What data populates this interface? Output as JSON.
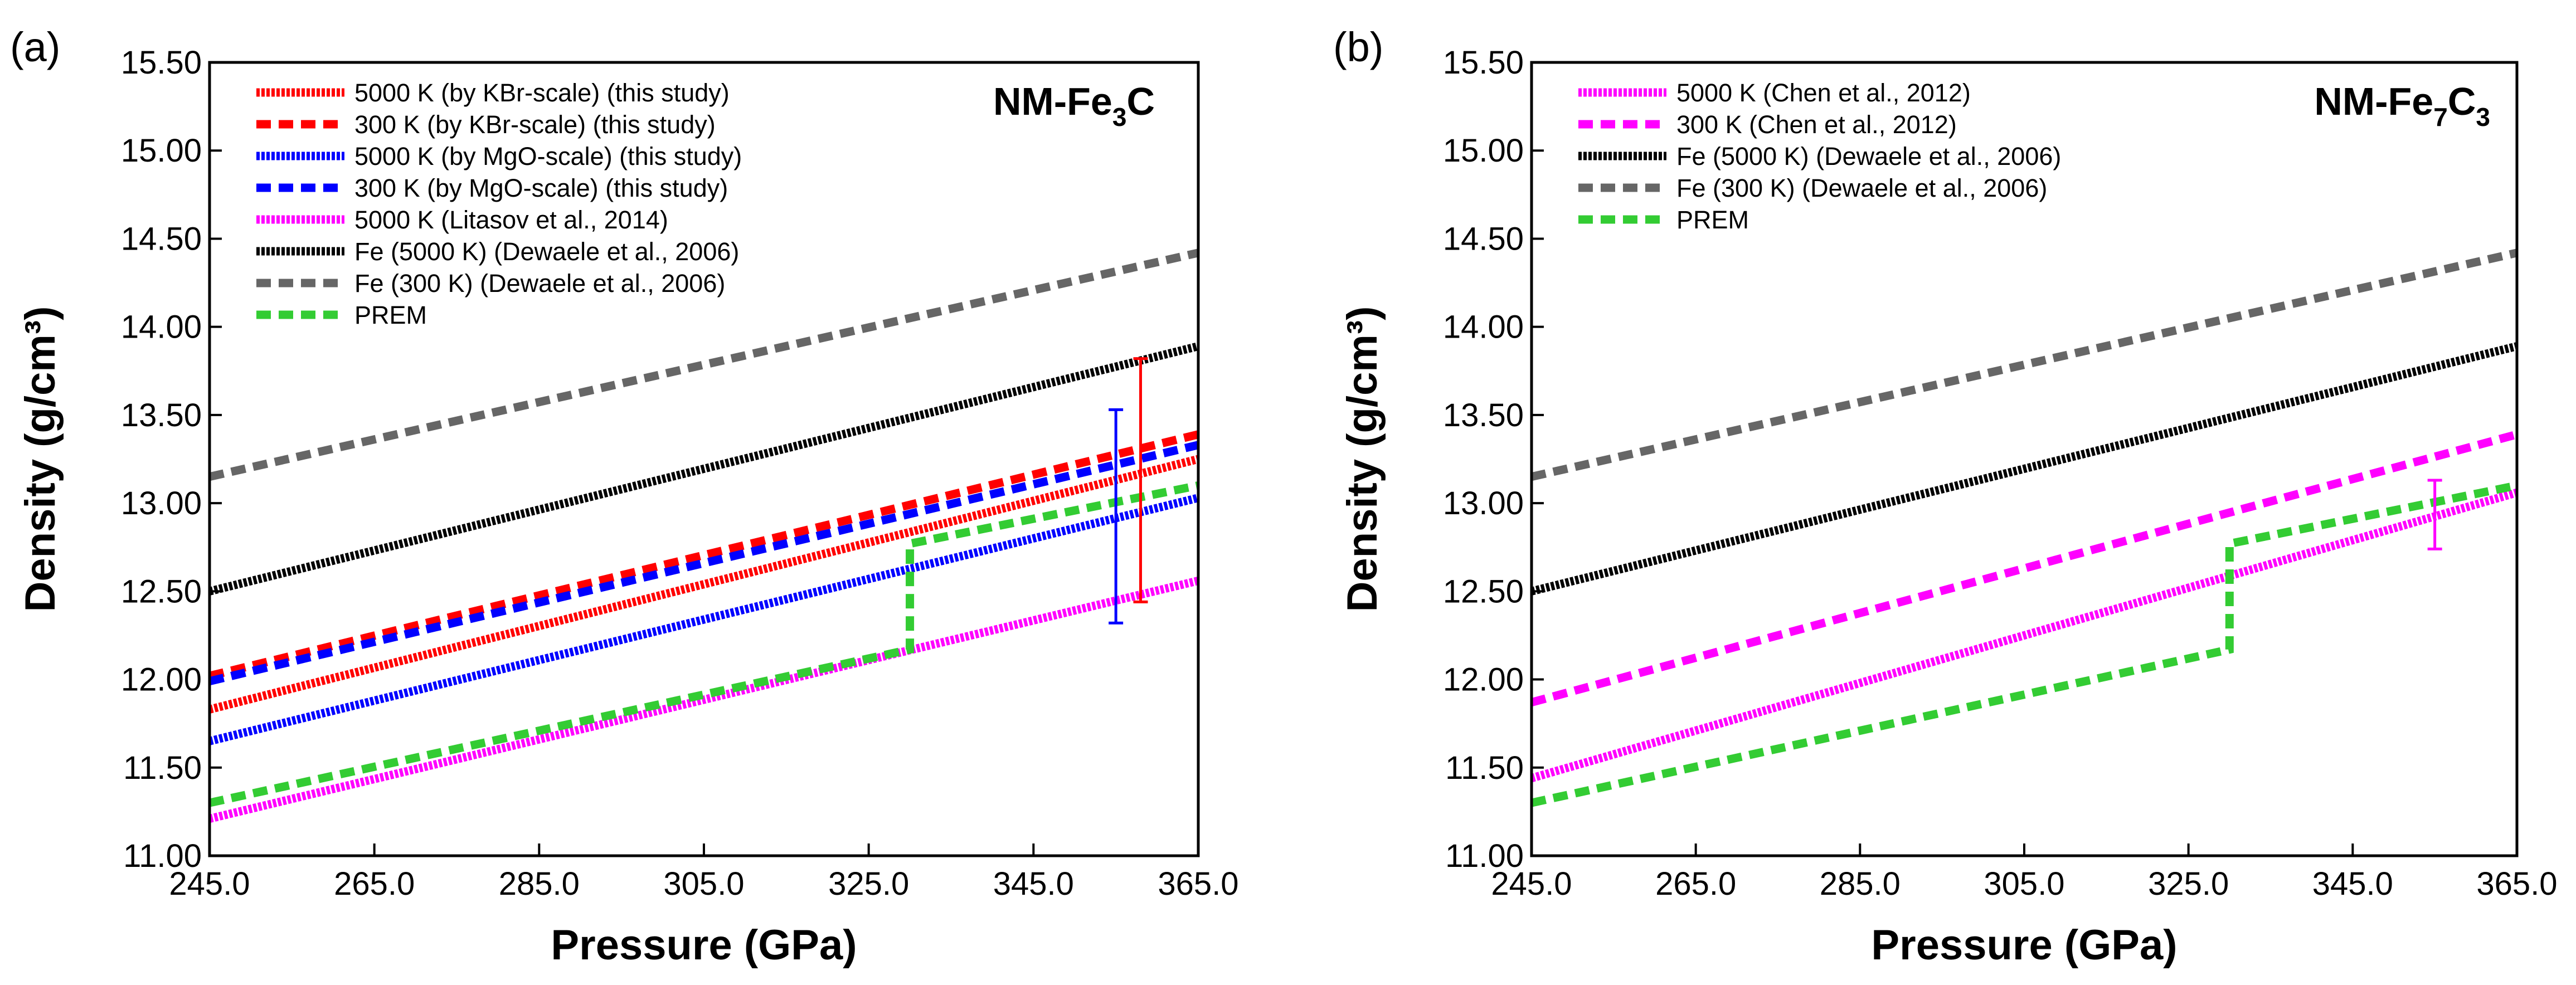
{
  "chart_data": [
    {
      "type": "line",
      "panel_label": "(a)",
      "annotation": {
        "text": "NM-Fe",
        "sub1": "3",
        "mid": "C",
        "sub2": ""
      },
      "xlabel": "Pressure (GPa)",
      "ylabel": "Density (g/cm³)",
      "xlim": [
        245,
        365
      ],
      "ylim": [
        11.0,
        15.5
      ],
      "xticks": [
        "245.0",
        "265.0",
        "285.0",
        "305.0",
        "325.0",
        "345.0",
        "365.0"
      ],
      "yticks": [
        "11.00",
        "11.50",
        "12.00",
        "12.50",
        "13.00",
        "13.50",
        "14.00",
        "14.50",
        "15.00",
        "15.50"
      ],
      "legend_position": "top-left",
      "series": [
        {
          "name": "5000 K (by KBr-scale) (this study)",
          "color": "#ff0000",
          "style": "dotted",
          "x": [
            245,
            365
          ],
          "y": [
            11.83,
            13.25
          ]
        },
        {
          "name": "300 K (by KBr-scale) (this study)",
          "color": "#ff0000",
          "style": "dashed",
          "x": [
            245,
            365
          ],
          "y": [
            12.02,
            13.39
          ]
        },
        {
          "name": "5000 K (by MgO-scale) (this study)",
          "color": "#0000ff",
          "style": "dotted",
          "x": [
            245,
            365
          ],
          "y": [
            11.65,
            13.03
          ]
        },
        {
          "name": "300 K (by MgO-scale) (this study)",
          "color": "#0000ff",
          "style": "dashed",
          "x": [
            245,
            365
          ],
          "y": [
            11.99,
            13.33
          ]
        },
        {
          "name": "5000 K (Litasov et al., 2014)",
          "color": "#ff00ff",
          "style": "dotted",
          "x": [
            245,
            365
          ],
          "y": [
            11.21,
            12.56
          ]
        },
        {
          "name": "Fe (5000 K) (Dewaele et al., 2006)",
          "color": "#000000",
          "style": "dotted",
          "x": [
            245,
            365
          ],
          "y": [
            12.5,
            13.89
          ]
        },
        {
          "name": "Fe (300 K) (Dewaele et al., 2006)",
          "color": "#666666",
          "style": "dashed",
          "x": [
            245,
            365
          ],
          "y": [
            13.15,
            14.42
          ]
        },
        {
          "name": "PREM",
          "color": "#33cc33",
          "style": "dashed",
          "x": [
            245,
            330,
            330,
            365
          ],
          "y": [
            11.3,
            12.17,
            12.77,
            13.1
          ]
        }
      ],
      "error_bars": [
        {
          "x": 355,
          "y_low": 12.32,
          "y_high": 13.53,
          "color": "#0000ff"
        },
        {
          "x": 358,
          "y_low": 12.44,
          "y_high": 13.82,
          "color": "#ff0000"
        }
      ]
    },
    {
      "type": "line",
      "panel_label": "(b)",
      "annotation": {
        "text": "NM-Fe",
        "sub1": "7",
        "mid": "C",
        "sub2": "3"
      },
      "xlabel": "Pressure (GPa)",
      "ylabel": "Density (g/cm³)",
      "xlim": [
        245,
        365
      ],
      "ylim": [
        11.0,
        15.5
      ],
      "xticks": [
        "245.0",
        "265.0",
        "285.0",
        "305.0",
        "325.0",
        "345.0",
        "365.0"
      ],
      "yticks": [
        "11.00",
        "11.50",
        "12.00",
        "12.50",
        "13.00",
        "13.50",
        "14.00",
        "14.50",
        "15.00",
        "15.50"
      ],
      "legend_position": "top-left",
      "series": [
        {
          "name": "5000 K (Chen et al., 2012)",
          "color": "#ff00ff",
          "style": "dotted",
          "x": [
            245,
            365
          ],
          "y": [
            11.44,
            13.06
          ]
        },
        {
          "name": "300 K (Chen et al., 2012)",
          "color": "#ff00ff",
          "style": "dashed",
          "x": [
            245,
            365
          ],
          "y": [
            11.87,
            13.39
          ]
        },
        {
          "name": "Fe (5000 K) (Dewaele et al., 2006)",
          "color": "#000000",
          "style": "dotted",
          "x": [
            245,
            365
          ],
          "y": [
            12.5,
            13.89
          ]
        },
        {
          "name": "Fe (300 K) (Dewaele et al., 2006)",
          "color": "#666666",
          "style": "dashed",
          "x": [
            245,
            365
          ],
          "y": [
            13.15,
            14.42
          ]
        },
        {
          "name": "PREM",
          "color": "#33cc33",
          "style": "dashed",
          "x": [
            245,
            330,
            330,
            365
          ],
          "y": [
            11.3,
            12.17,
            12.77,
            13.1
          ]
        }
      ],
      "error_bars": [
        {
          "x": 355,
          "y_low": 12.74,
          "y_high": 13.13,
          "color": "#ff00ff"
        }
      ]
    }
  ]
}
